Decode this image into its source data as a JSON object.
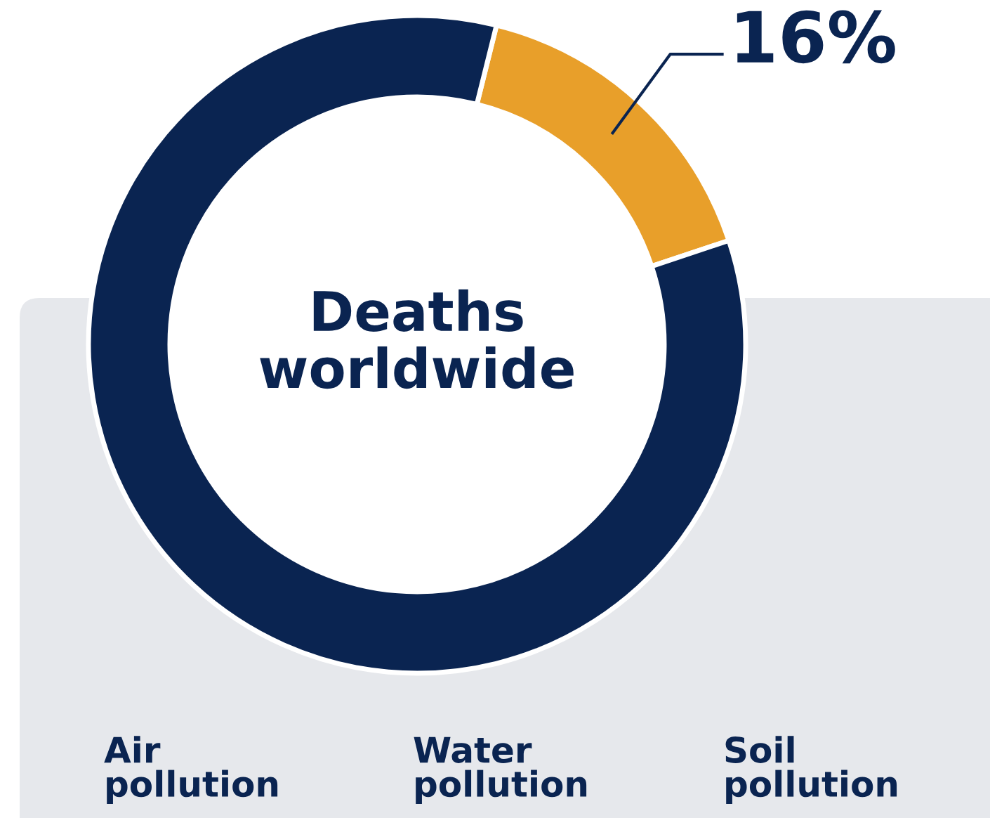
{
  "chart_data": {
    "type": "donut",
    "title": "Deaths worldwide",
    "categories": [
      null,
      null
    ],
    "values": [
      16,
      84
    ],
    "colors": [
      "#e89f2a",
      "#0a2451"
    ],
    "value_labels": [
      "16%",
      null
    ],
    "annotations": [
      "Air pollution",
      "Water pollution",
      "Soil pollution"
    ]
  }
}
